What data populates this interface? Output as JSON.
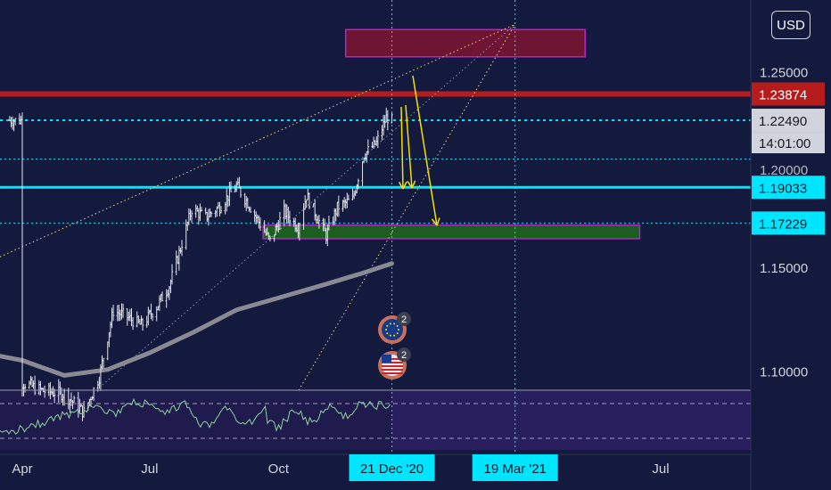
{
  "currency_button": "USD",
  "chart_data": {
    "type": "line",
    "title": "",
    "subtitle": "",
    "xlabel": "",
    "ylabel": "",
    "y_scale": "log",
    "ylim": [
      1.0915,
      1.2895
    ],
    "x_ticks": [
      {
        "date": "2020-04-01",
        "label": "Apr"
      },
      {
        "date": "2020-07-01",
        "label": "Jul"
      },
      {
        "date": "2020-10-01",
        "label": "Oct"
      },
      {
        "date": "2021-07-01",
        "label": "Jul"
      }
    ],
    "x_highlight_labels": [
      {
        "date": "2020-12-21",
        "label": "21 Dec '20"
      },
      {
        "date": "2021-03-19",
        "label": "19 Mar '21"
      }
    ],
    "y_ticks": [
      "1.25000",
      "1.15000",
      "1.10000"
    ],
    "price_badges": [
      {
        "value": 1.23874,
        "label": "1.23874",
        "color": "#b71c1c",
        "text_color": "#ffffff"
      },
      {
        "value": 1.2249,
        "label": "1.22490",
        "color": "#d1d4dc",
        "text_color": "#131722",
        "sub_label": "14:01:00"
      },
      {
        "value": 1.19033,
        "label": "1.19033",
        "color": "#00e5ff",
        "text_color": "#131722"
      },
      {
        "value": 1.17229,
        "label": "1.17229",
        "color": "#00e5ff",
        "text_color": "#131722"
      }
    ],
    "horizontal_lines": [
      {
        "value": 1.23874,
        "style": "solid",
        "color": "#b71c1c"
      },
      {
        "value": 1.2249,
        "style": "dotted",
        "color": "#00e5ff"
      },
      {
        "value": 1.2048,
        "style": "dotted",
        "color": "#00e5ff"
      },
      {
        "value": 1.19033,
        "style": "solid",
        "color": "#00e5ff"
      },
      {
        "value": 1.17229,
        "style": "dotted",
        "color": "#00e5ff"
      }
    ],
    "zones": [
      {
        "from_date": "2020-11-18",
        "to_date": "2021-05-08",
        "low": 1.2586,
        "high": 1.2733,
        "fill": "#6d1532",
        "stroke": "#b026c9"
      },
      {
        "from_date": "2020-09-20",
        "to_date": "2021-06-16",
        "low": 1.1645,
        "high": 1.1713,
        "fill": "#1b5e20",
        "stroke": "#b026c9"
      }
    ],
    "price_series_ohlc_daily": [
      {
        "date": "2020-04-01",
        "close": 1.0952
      },
      {
        "date": "2020-04-15",
        "close": 1.0913
      },
      {
        "date": "2020-05-01",
        "close": 1.0898
      },
      {
        "date": "2020-05-15",
        "close": 1.0812
      },
      {
        "date": "2020-05-26",
        "close": 1.0978
      },
      {
        "date": "2020-06-05",
        "close": 1.1292
      },
      {
        "date": "2020-06-15",
        "close": 1.1262
      },
      {
        "date": "2020-06-25",
        "close": 1.1221
      },
      {
        "date": "2020-07-06",
        "close": 1.1312
      },
      {
        "date": "2020-07-15",
        "close": 1.1412
      },
      {
        "date": "2020-07-22",
        "close": 1.1573
      },
      {
        "date": "2020-07-31",
        "close": 1.1793
      },
      {
        "date": "2020-08-10",
        "close": 1.1753
      },
      {
        "date": "2020-08-20",
        "close": 1.1805
      },
      {
        "date": "2020-09-01",
        "close": 1.1912
      },
      {
        "date": "2020-09-10",
        "close": 1.1814
      },
      {
        "date": "2020-09-25",
        "close": 1.1632
      },
      {
        "date": "2020-10-05",
        "close": 1.1781
      },
      {
        "date": "2020-10-15",
        "close": 1.1703
      },
      {
        "date": "2020-10-21",
        "close": 1.1862
      },
      {
        "date": "2020-11-04",
        "close": 1.1661
      },
      {
        "date": "2020-11-12",
        "close": 1.1801
      },
      {
        "date": "2020-11-23",
        "close": 1.1842
      },
      {
        "date": "2020-12-01",
        "close": 1.2071
      },
      {
        "date": "2020-12-10",
        "close": 1.2131
      },
      {
        "date": "2020-12-17",
        "close": 1.2264
      },
      {
        "date": "2020-12-21",
        "close": 1.2249
      }
    ],
    "moving_average_series": [
      {
        "date": "2020-04-01",
        "value": 1.1055
      },
      {
        "date": "2020-05-01",
        "value": 1.0984
      },
      {
        "date": "2020-06-01",
        "value": 1.1012
      },
      {
        "date": "2020-07-01",
        "value": 1.1091
      },
      {
        "date": "2020-08-01",
        "value": 1.1188
      },
      {
        "date": "2020-09-01",
        "value": 1.1296
      },
      {
        "date": "2020-10-01",
        "value": 1.1354
      },
      {
        "date": "2020-11-01",
        "value": 1.1415
      },
      {
        "date": "2020-12-01",
        "value": 1.1477
      },
      {
        "date": "2020-12-21",
        "value": 1.1522
      }
    ],
    "rsi_series_range": [
      0,
      100
    ],
    "event_badges": [
      {
        "region": "EU",
        "count": "2"
      },
      {
        "region": "US",
        "count": "2"
      }
    ]
  }
}
